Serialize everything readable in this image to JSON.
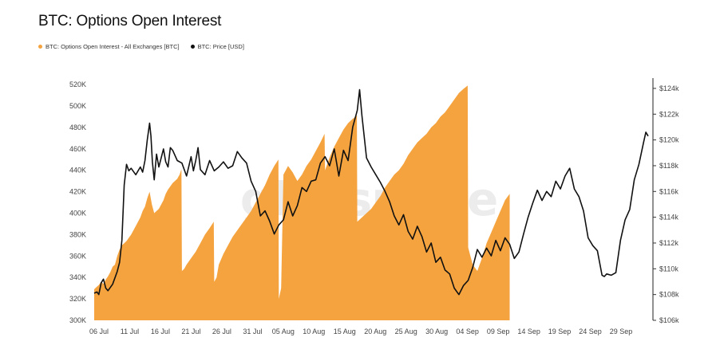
{
  "title": "BTC: Options Open Interest",
  "legend": [
    {
      "label": "BTC: Options Open Interest - All Exchanges [BTC]",
      "color": "#f5a33e"
    },
    {
      "label": "BTC: Price [USD]",
      "color": "#111111"
    }
  ],
  "watermark": "glassnode",
  "chart_data": {
    "type": "area",
    "x_tick_labels": [
      "06 Jul",
      "11 Jul",
      "16 Jul",
      "21 Jul",
      "26 Jul",
      "31 Jul",
      "05 Aug",
      "10 Aug",
      "15 Aug",
      "20 Aug",
      "25 Aug",
      "30 Aug",
      "04 Sep",
      "09 Sep",
      "14 Sep",
      "19 Sep",
      "24 Sep",
      "29 Sep"
    ],
    "x_range_days": [
      0,
      92
    ],
    "y_left": {
      "ticks": [
        "300K",
        "320K",
        "340K",
        "360K",
        "380K",
        "400K",
        "420K",
        "440K",
        "460K",
        "480K",
        "500K",
        "520K"
      ],
      "range": [
        300000,
        526000
      ]
    },
    "y_right": {
      "ticks": [
        "$106k",
        "$108k",
        "$110k",
        "$112k",
        "$114k",
        "$116k",
        "$118k",
        "$120k",
        "$122k",
        "$124k"
      ],
      "range": [
        106000,
        124800
      ]
    },
    "series": [
      {
        "name": "BTC: Options Open Interest - All Exchanges [BTC]",
        "axis": "left",
        "color": "#f5a33e",
        "points": [
          [
            0,
            329000
          ],
          [
            0.5,
            331000
          ],
          [
            1,
            333000
          ],
          [
            1.5,
            336000
          ],
          [
            2,
            334000
          ],
          [
            2.5,
            338000
          ],
          [
            3,
            341000
          ],
          [
            3.5,
            345000
          ],
          [
            4,
            350000
          ],
          [
            4.5,
            352000
          ],
          [
            5,
            360000
          ],
          [
            5.5,
            366000
          ],
          [
            6,
            370000
          ],
          [
            6.5,
            372000
          ],
          [
            7,
            374000
          ],
          [
            8,
            380000
          ],
          [
            9,
            388000
          ],
          [
            10,
            396000
          ],
          [
            10.5,
            402000
          ],
          [
            11,
            406000
          ],
          [
            11.5,
            414000
          ],
          [
            12,
            420000
          ],
          [
            12.5,
            408000
          ],
          [
            13,
            400000
          ],
          [
            14,
            404000
          ],
          [
            15,
            412000
          ],
          [
            15.5,
            418000
          ],
          [
            16,
            422000
          ],
          [
            17,
            428000
          ],
          [
            18,
            432000
          ],
          [
            18.5,
            436000
          ],
          [
            18.9,
            441000
          ],
          [
            19,
            346000
          ],
          [
            19.5,
            348000
          ],
          [
            20,
            352000
          ],
          [
            21,
            358000
          ],
          [
            22,
            364000
          ],
          [
            23,
            372000
          ],
          [
            24,
            380000
          ],
          [
            25,
            386000
          ],
          [
            25.9,
            392000
          ],
          [
            26,
            336000
          ],
          [
            26.5,
            340000
          ],
          [
            27,
            352000
          ],
          [
            28,
            362000
          ],
          [
            29,
            370000
          ],
          [
            30,
            378000
          ],
          [
            31,
            384000
          ],
          [
            32,
            390000
          ],
          [
            33,
            396000
          ],
          [
            34,
            402000
          ],
          [
            35,
            410000
          ],
          [
            36,
            418000
          ],
          [
            37,
            426000
          ],
          [
            38,
            436000
          ],
          [
            39,
            444000
          ],
          [
            39.9,
            450000
          ],
          [
            40,
            320000
          ],
          [
            40.5,
            330000
          ],
          [
            41,
            436000
          ],
          [
            42,
            444000
          ],
          [
            43,
            438000
          ],
          [
            44,
            430000
          ],
          [
            45,
            436000
          ],
          [
            46,
            444000
          ],
          [
            47,
            450000
          ],
          [
            48,
            458000
          ],
          [
            49,
            466000
          ],
          [
            49.9,
            474000
          ],
          [
            50,
            440000
          ],
          [
            51,
            452000
          ],
          [
            52,
            462000
          ],
          [
            53,
            470000
          ],
          [
            54,
            478000
          ],
          [
            55,
            484000
          ],
          [
            56,
            488000
          ],
          [
            56.9,
            491000
          ],
          [
            57,
            392000
          ],
          [
            58,
            396000
          ],
          [
            59,
            400000
          ],
          [
            60,
            404000
          ],
          [
            61,
            410000
          ],
          [
            62,
            416000
          ],
          [
            63,
            424000
          ],
          [
            64,
            430000
          ],
          [
            65,
            436000
          ],
          [
            66,
            440000
          ],
          [
            67,
            446000
          ],
          [
            68,
            454000
          ],
          [
            69,
            460000
          ],
          [
            70,
            466000
          ],
          [
            71,
            470000
          ],
          [
            72,
            474000
          ],
          [
            73,
            480000
          ],
          [
            74,
            484000
          ],
          [
            75,
            490000
          ],
          [
            76,
            494000
          ],
          [
            77,
            500000
          ],
          [
            78,
            506000
          ],
          [
            79,
            512000
          ],
          [
            80,
            516000
          ],
          [
            80.9,
            519000
          ],
          [
            81,
            368000
          ],
          [
            81.5,
            360000
          ],
          [
            82,
            352000
          ],
          [
            83,
            346000
          ],
          [
            84,
            358000
          ],
          [
            85,
            372000
          ],
          [
            86,
            382000
          ],
          [
            87,
            392000
          ],
          [
            88,
            402000
          ],
          [
            89,
            412000
          ],
          [
            90,
            418000
          ]
        ]
      },
      {
        "name": "BTC: Price [USD]",
        "axis": "right",
        "color": "#111111",
        "points": [
          [
            0,
            108100
          ],
          [
            0.6,
            108200
          ],
          [
            1,
            108000
          ],
          [
            1.5,
            108900
          ],
          [
            2,
            109200
          ],
          [
            2.5,
            108500
          ],
          [
            3,
            108300
          ],
          [
            4,
            108800
          ],
          [
            5,
            109800
          ],
          [
            5.5,
            110500
          ],
          [
            6,
            112200
          ],
          [
            6.5,
            116500
          ],
          [
            7,
            118100
          ],
          [
            7.5,
            117600
          ],
          [
            8,
            117800
          ],
          [
            9,
            117300
          ],
          [
            10,
            117900
          ],
          [
            10.5,
            117500
          ],
          [
            11,
            118400
          ],
          [
            11.5,
            120000
          ],
          [
            12,
            121300
          ],
          [
            12.3,
            120300
          ],
          [
            12.6,
            118300
          ],
          [
            13,
            116900
          ],
          [
            13.5,
            118900
          ],
          [
            14,
            117900
          ],
          [
            15,
            119300
          ],
          [
            15.5,
            118300
          ],
          [
            16,
            117900
          ],
          [
            16.5,
            119400
          ],
          [
            17,
            119200
          ],
          [
            18,
            118400
          ],
          [
            19,
            118200
          ],
          [
            20,
            117200
          ],
          [
            21,
            118700
          ],
          [
            21.5,
            117600
          ],
          [
            22,
            118400
          ],
          [
            22.5,
            119400
          ],
          [
            23,
            117700
          ],
          [
            24,
            117300
          ],
          [
            25,
            118400
          ],
          [
            26,
            117600
          ],
          [
            27,
            117900
          ],
          [
            28,
            118300
          ],
          [
            29,
            117800
          ],
          [
            30,
            118000
          ],
          [
            31,
            119100
          ],
          [
            32,
            118600
          ],
          [
            33,
            118200
          ],
          [
            34,
            116800
          ],
          [
            35,
            116000
          ],
          [
            36,
            114100
          ],
          [
            37,
            114500
          ],
          [
            38,
            113700
          ],
          [
            39,
            112700
          ],
          [
            40,
            113400
          ],
          [
            41,
            113800
          ],
          [
            42,
            115200
          ],
          [
            43,
            114100
          ],
          [
            44,
            114900
          ],
          [
            45,
            116300
          ],
          [
            46,
            116000
          ],
          [
            47,
            116800
          ],
          [
            48,
            116900
          ],
          [
            49,
            118200
          ],
          [
            50,
            118700
          ],
          [
            51,
            118000
          ],
          [
            52,
            119300
          ],
          [
            53,
            117200
          ],
          [
            54,
            119200
          ],
          [
            55,
            118400
          ],
          [
            56,
            121000
          ],
          [
            57,
            122300
          ],
          [
            57.5,
            123900
          ],
          [
            58,
            121900
          ],
          [
            59,
            118600
          ],
          [
            60,
            117900
          ],
          [
            61,
            117300
          ],
          [
            62,
            116700
          ],
          [
            63,
            116000
          ],
          [
            64,
            115200
          ],
          [
            65,
            114100
          ],
          [
            66,
            113400
          ],
          [
            67,
            114200
          ],
          [
            68,
            112900
          ],
          [
            69,
            112300
          ],
          [
            70,
            113300
          ],
          [
            71,
            112500
          ],
          [
            72,
            111300
          ],
          [
            73,
            112000
          ],
          [
            74,
            110500
          ],
          [
            75,
            110900
          ],
          [
            76,
            109900
          ],
          [
            77,
            109600
          ],
          [
            78,
            108500
          ],
          [
            79,
            108000
          ],
          [
            80,
            108700
          ],
          [
            81,
            109100
          ],
          [
            82,
            110100
          ],
          [
            83,
            111500
          ],
          [
            84,
            110900
          ],
          [
            85,
            111600
          ],
          [
            86,
            111000
          ],
          [
            87,
            112200
          ],
          [
            88,
            111400
          ],
          [
            89,
            112400
          ],
          [
            90,
            111900
          ],
          [
            91,
            110800
          ],
          [
            92,
            111300
          ],
          [
            93,
            112700
          ],
          [
            94,
            114000
          ],
          [
            95,
            115100
          ],
          [
            96,
            116100
          ],
          [
            97,
            115300
          ],
          [
            98,
            116000
          ],
          [
            99,
            115600
          ],
          [
            100,
            116800
          ],
          [
            101,
            116200
          ],
          [
            102,
            117200
          ],
          [
            103,
            117800
          ],
          [
            104,
            116200
          ],
          [
            105,
            115600
          ],
          [
            106,
            114500
          ],
          [
            107,
            112400
          ],
          [
            108,
            111800
          ],
          [
            109,
            111400
          ],
          [
            110,
            109500
          ],
          [
            110.5,
            109400
          ],
          [
            111,
            109600
          ],
          [
            112,
            109500
          ],
          [
            113,
            109700
          ],
          [
            114,
            112200
          ],
          [
            115,
            113800
          ],
          [
            116,
            114600
          ],
          [
            117,
            116900
          ],
          [
            118,
            118100
          ],
          [
            119,
            119800
          ],
          [
            119.5,
            120600
          ],
          [
            120,
            120300
          ]
        ]
      }
    ]
  }
}
